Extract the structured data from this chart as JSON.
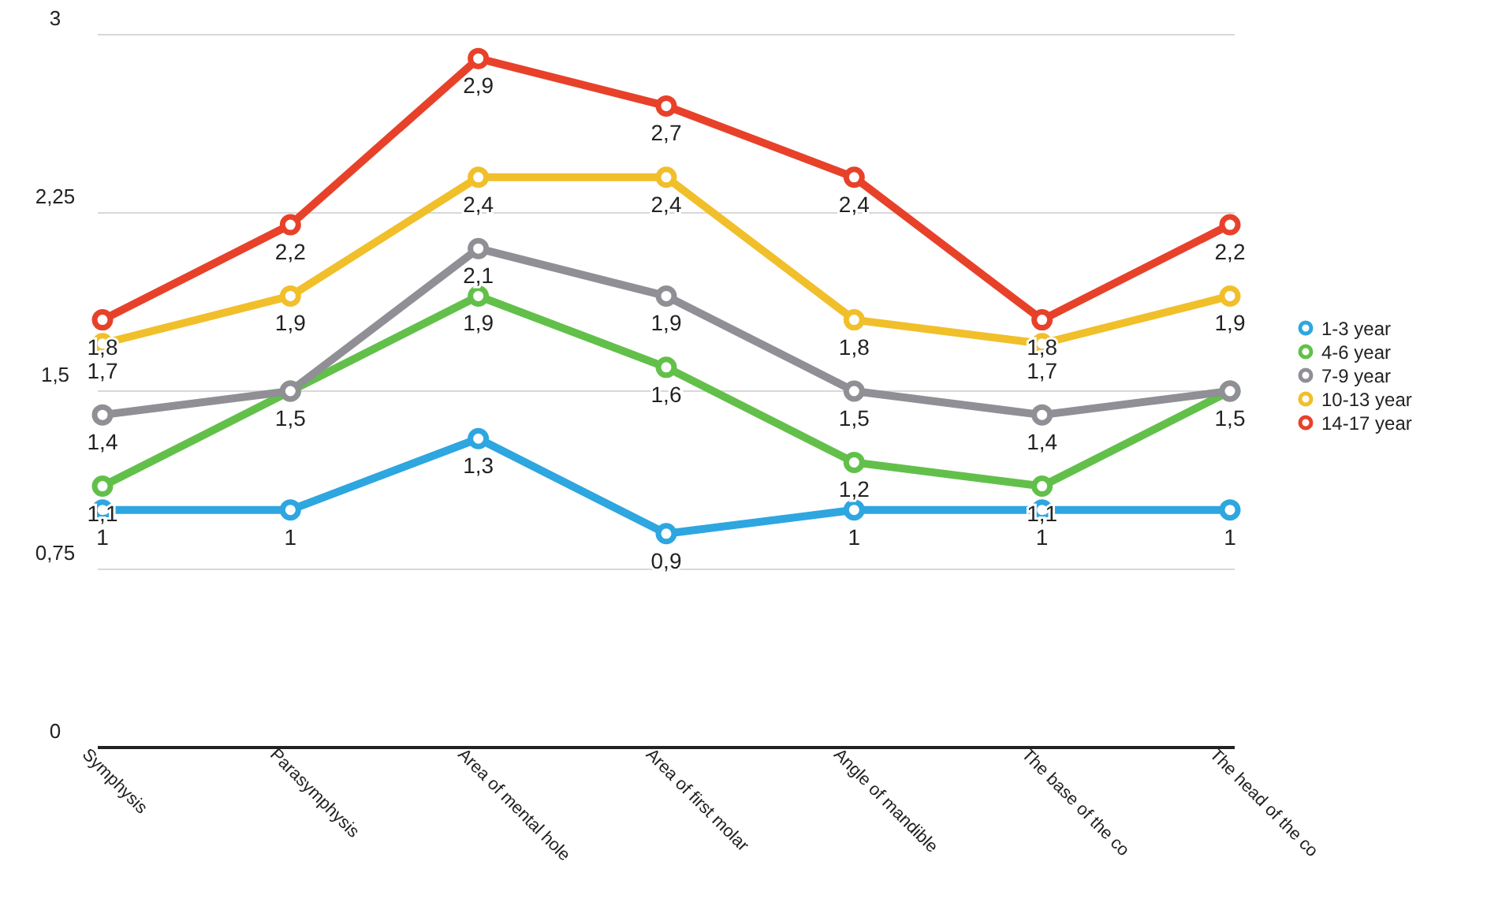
{
  "chart_data": {
    "type": "line",
    "categories": [
      "Symphysis",
      "Parasymphysis",
      "Area of mental hole",
      "Area of first molar",
      "Angle of mandible",
      "The base of the co",
      "The head of the co"
    ],
    "series": [
      {
        "name": "1-3 year",
        "color": "#2ea6e0",
        "values": [
          1,
          1,
          1.3,
          0.9,
          1,
          1,
          1
        ],
        "value_labels": [
          "1",
          "1",
          "1,3",
          "0,9",
          "1",
          "1",
          "1"
        ]
      },
      {
        "name": "4-6 year",
        "color": "#62c04a",
        "values": [
          1.1,
          1.5,
          1.9,
          1.6,
          1.2,
          1.1,
          1.5
        ],
        "value_labels": [
          "1,1",
          "1,5",
          "1,9",
          "1,6",
          "1,2",
          "1,1",
          "1,5"
        ]
      },
      {
        "name": "7-9 year",
        "color": "#8f8f95",
        "values": [
          1.4,
          1.5,
          2.1,
          1.9,
          1.5,
          1.4,
          1.5
        ],
        "value_labels": [
          "1,4",
          null,
          "2,1",
          "1,9",
          "1,5",
          "1,4",
          null
        ]
      },
      {
        "name": "10-13 year",
        "color": "#f1bf2a",
        "values": [
          1.7,
          1.9,
          2.4,
          2.4,
          1.8,
          1.7,
          1.9
        ],
        "value_labels": [
          "1,7",
          "1,9",
          "2,4",
          "2,4",
          "1,8",
          "1,7",
          "1,9"
        ]
      },
      {
        "name": "14-17 year",
        "color": "#e8412a",
        "values": [
          1.8,
          2.2,
          2.9,
          2.7,
          2.4,
          1.8,
          2.2
        ],
        "value_labels": [
          "1,8",
          "2,2",
          "2,9",
          "2,7",
          "2,4",
          "1,8",
          "2,2"
        ]
      }
    ],
    "ylim": [
      0,
      3
    ],
    "yticks": [
      0,
      {
        "value": 0.75,
        "label": "0,75"
      },
      {
        "value": 1.5,
        "label": "1,5"
      },
      {
        "value": 2.25,
        "label": "2,25"
      },
      3
    ],
    "grid": "y",
    "legend": "right",
    "marker": "circle",
    "line_style": "solid"
  }
}
